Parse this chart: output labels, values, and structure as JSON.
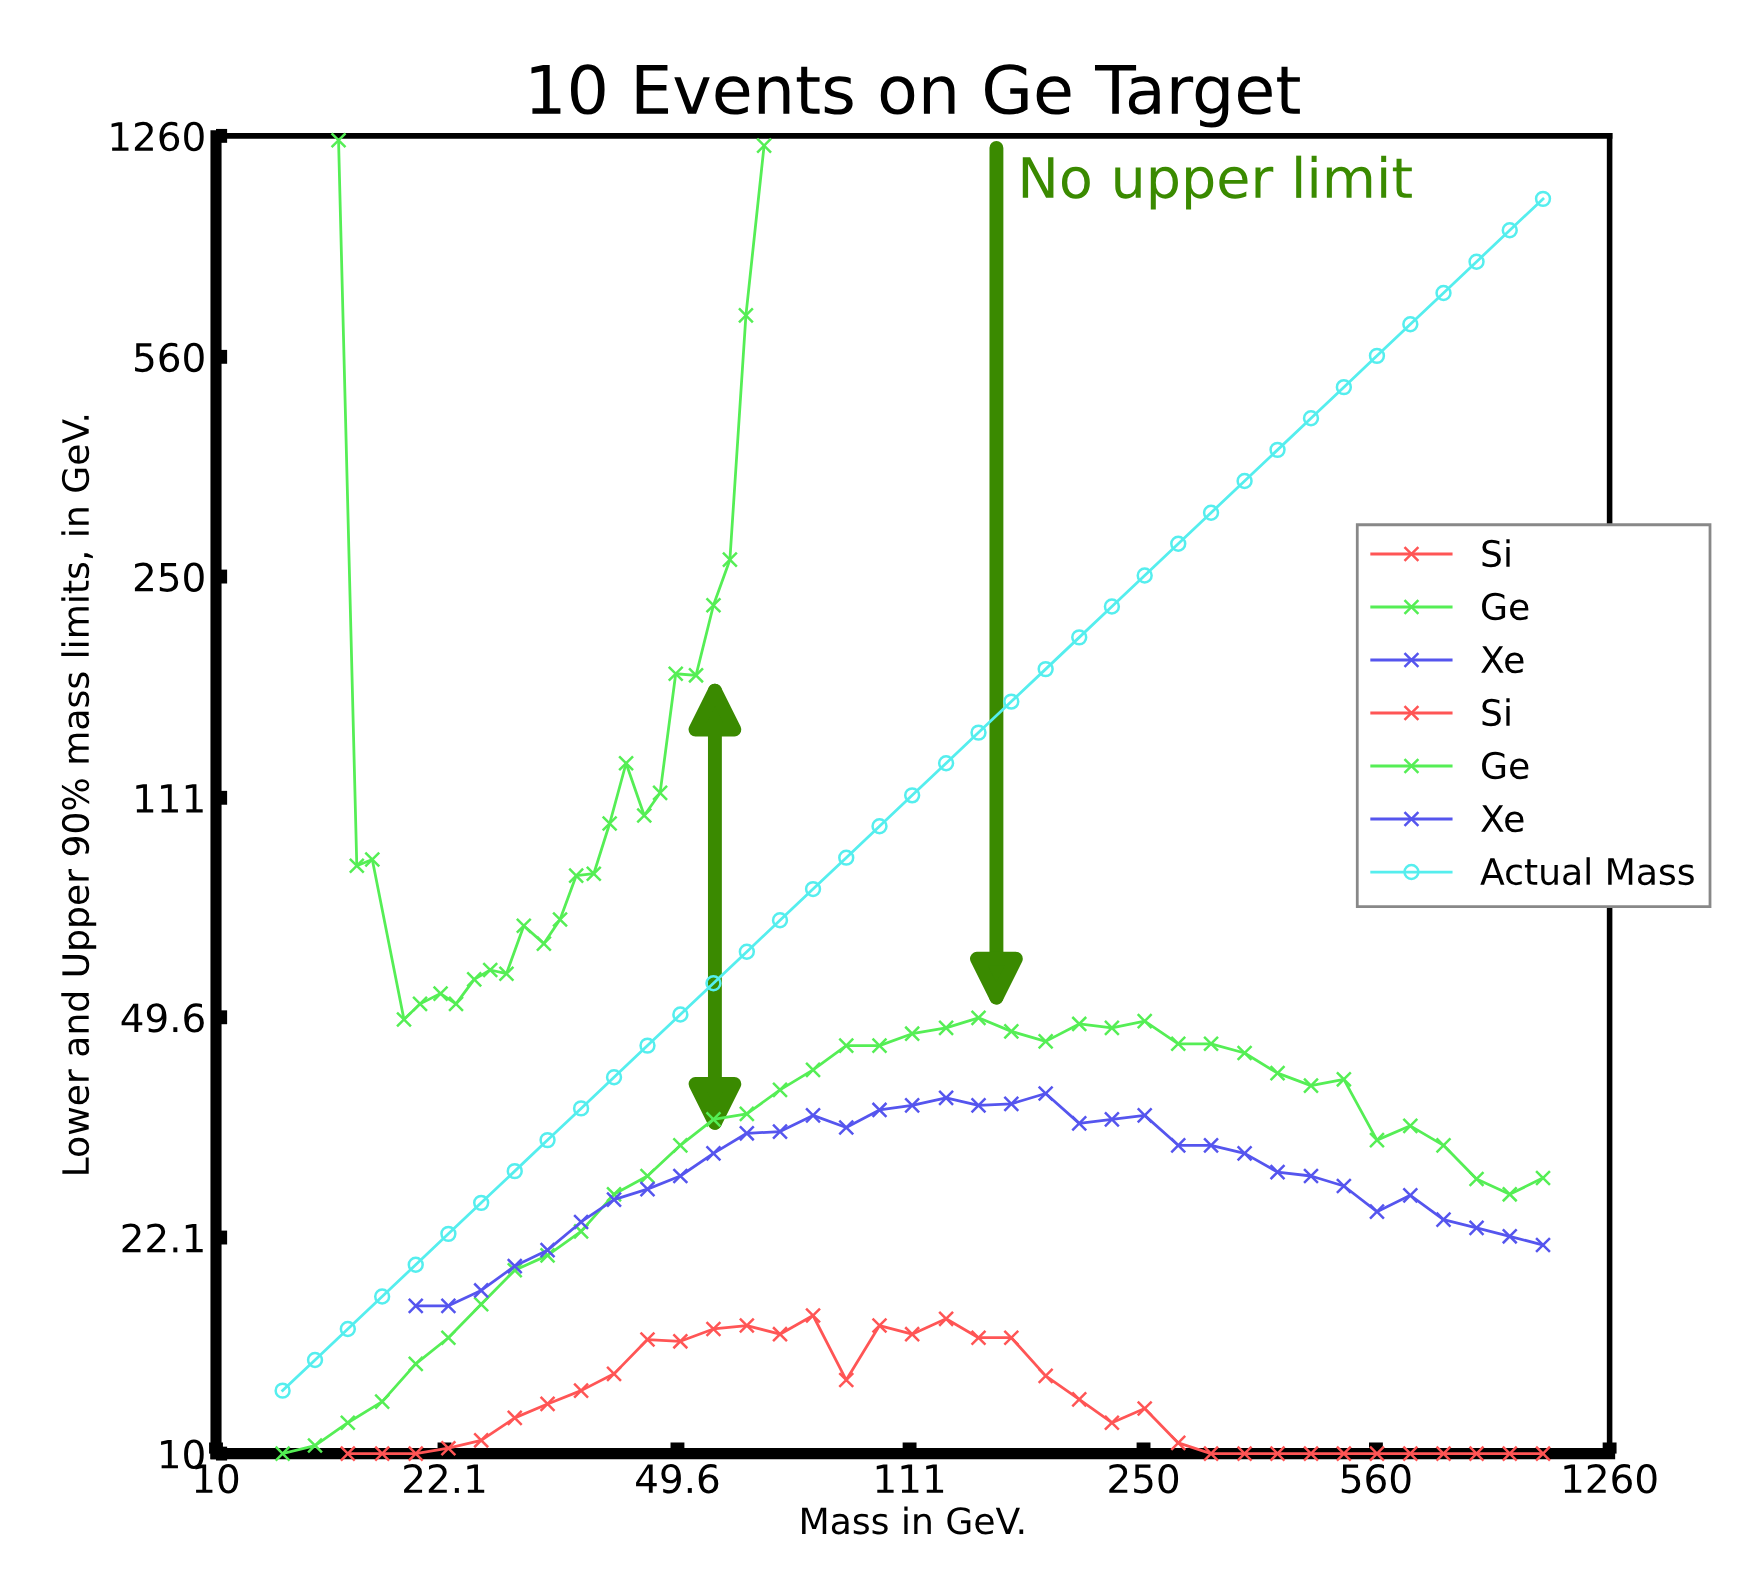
{
  "chart_data": {
    "type": "line",
    "title": "10 Events on Ge Target",
    "xlabel": "Mass in GeV.",
    "ylabel": "Lower and Upper 90% mass limits, in GeV.",
    "log": "xy",
    "xlim": [
      10,
      1260
    ],
    "ylim": [
      10,
      1260
    ],
    "xticks": [
      10,
      22.1,
      49.6,
      111,
      250,
      560,
      1260
    ],
    "yticks": [
      10,
      22.1,
      49.6,
      111,
      250,
      560,
      1260
    ],
    "grid": false,
    "legend": "right",
    "marker": "cross",
    "line_style": "solid",
    "x": [
      12.6,
      14.1,
      15.8,
      17.8,
      20.0,
      22.4,
      25.1,
      28.2,
      31.6,
      35.5,
      39.8,
      44.7,
      50.1,
      56.2,
      63.1,
      70.8,
      79.4,
      89.1,
      100,
      112,
      126,
      141,
      158,
      178,
      200,
      224,
      251,
      282,
      316,
      355,
      398,
      447,
      501,
      562,
      631,
      708,
      794,
      891,
      1000
    ],
    "series": [
      {
        "name": "Si",
        "color": "#ff5555",
        "values": [
          null,
          null,
          10,
          10,
          10,
          10.2,
          10.5,
          11.4,
          12.0,
          12.6,
          13.4,
          15.2,
          15.1,
          15.8,
          16.0,
          15.5,
          16.6,
          13.1,
          16.0,
          15.5,
          16.4,
          15.3,
          15.3,
          13.3,
          12.2,
          11.2,
          11.8,
          10.4,
          10,
          10,
          10,
          10,
          10,
          10,
          10,
          10,
          10,
          10,
          10
        ]
      },
      {
        "name": "Ge",
        "color": "#55ee55",
        "values": [
          10.0,
          10.3,
          11.2,
          12.1,
          13.9,
          15.3,
          17.3,
          19.6,
          20.7,
          22.6,
          25.9,
          27.7,
          31.0,
          34.1,
          34.8,
          38.0,
          40.9,
          44.7,
          44.7,
          46.7,
          47.7,
          49.5,
          47.1,
          45.4,
          48.4,
          47.7,
          48.9,
          45.0,
          45.0,
          43.5,
          40.4,
          38.6,
          39.5,
          31.6,
          33.3,
          31.0,
          27.4,
          25.9,
          27.5
        ]
      },
      {
        "name": "Xe",
        "color": "#5555ee",
        "values": [
          null,
          null,
          null,
          null,
          17.2,
          17.2,
          18.2,
          19.9,
          21.1,
          23.4,
          25.4,
          26.4,
          27.7,
          30.1,
          32.4,
          32.6,
          34.6,
          33.1,
          35.3,
          35.9,
          36.9,
          35.9,
          36.1,
          37.5,
          33.6,
          34.1,
          34.6,
          31.0,
          31.0,
          30.1,
          28.1,
          27.7,
          26.7,
          24.3,
          25.8,
          23.6,
          22.9,
          22.2,
          21.5
        ]
      },
      {
        "name": "Si",
        "color": "#ff5555",
        "values": [
          null,
          null,
          null,
          null,
          null,
          null,
          null,
          null,
          null,
          null,
          null,
          null,
          null,
          null,
          null,
          null,
          null,
          null,
          null,
          null,
          null,
          null,
          null,
          null,
          null,
          null,
          null,
          null,
          null,
          null,
          null,
          null,
          null,
          null,
          null,
          null,
          null,
          null,
          null
        ]
      },
      {
        "name": "Ge",
        "color": "#55ee55",
        "x": [
          15.3,
          16.3,
          17.2,
          19.2,
          20.3,
          21.8,
          23.0,
          24.5,
          25.9,
          27.4,
          29.1,
          31.2,
          33.0,
          34.9,
          37.1,
          39.2,
          41.5,
          44.2,
          46.7,
          49.3,
          52.9,
          56.2,
          59.5,
          62.9,
          67.0
        ],
        "values": [
          1240,
          86.5,
          88.5,
          49.2,
          52.1,
          54.1,
          52.1,
          57.0,
          59.0,
          58.2,
          69.4,
          65.0,
          71.0,
          83.4,
          84.0,
          101,
          126,
          104,
          113,
          175,
          174,
          225,
          266,
          652,
          1216
        ]
      },
      {
        "name": "Xe",
        "color": "#5555ee",
        "values": [
          null,
          null,
          null,
          null,
          null,
          null,
          null,
          null,
          null,
          null,
          null,
          null,
          null,
          null,
          null,
          null,
          null,
          null,
          null,
          null,
          null,
          null,
          null,
          null,
          null,
          null,
          null,
          null,
          null,
          null,
          null,
          null,
          null,
          null,
          null,
          null,
          null,
          null,
          null
        ]
      },
      {
        "name": "Actual Mass",
        "color": "#55eeee",
        "marker": "circle",
        "values": [
          12.6,
          14.1,
          15.8,
          17.8,
          20.0,
          22.4,
          25.1,
          28.2,
          31.6,
          35.5,
          39.8,
          44.7,
          50.1,
          56.2,
          63.1,
          70.8,
          79.4,
          89.1,
          100,
          112,
          126,
          141,
          158,
          178,
          200,
          224,
          251,
          282,
          316,
          355,
          398,
          447,
          501,
          562,
          631,
          708,
          794,
          891,
          1000
        ]
      }
    ],
    "annotations": [
      "No upper limit"
    ]
  }
}
